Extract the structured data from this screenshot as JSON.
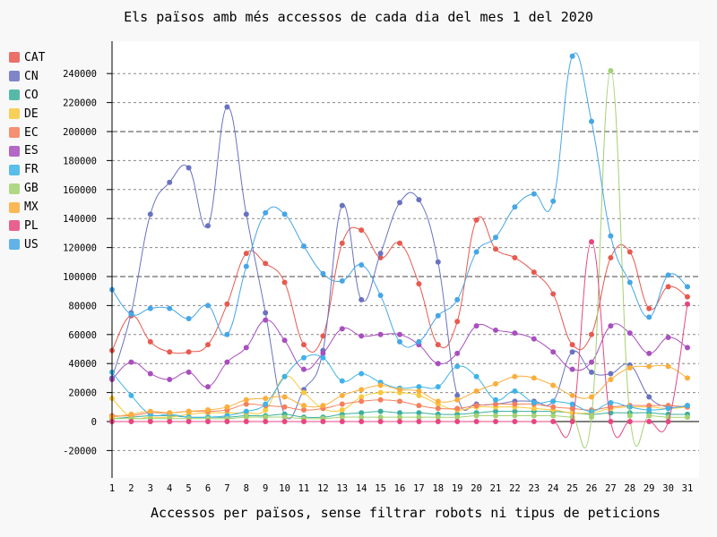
{
  "chart_data": {
    "type": "line",
    "title": "Els països amb més accessos de cada dia del mes 1 del 2020",
    "xlabel": "Accessos per països, sense filtrar robots ni tipus de peticions",
    "ylabel": "",
    "ylim": [
      -40000,
      258000
    ],
    "yticks": [
      -20000,
      0,
      20000,
      40000,
      60000,
      80000,
      100000,
      120000,
      140000,
      160000,
      180000,
      200000,
      220000,
      240000
    ],
    "categories": [
      "1",
      "2",
      "3",
      "4",
      "5",
      "6",
      "7",
      "8",
      "9",
      "10",
      "11",
      "12",
      "13",
      "14",
      "15",
      "16",
      "17",
      "18",
      "19",
      "20",
      "21",
      "22",
      "23",
      "24",
      "25",
      "26",
      "27",
      "28",
      "29",
      "30",
      "31"
    ],
    "grid": "horizontal-dashed",
    "legend_position": "left",
    "series": [
      {
        "name": "CAT",
        "color": "#e8594f",
        "values": [
          49000,
          73000,
          55000,
          48000,
          48000,
          53000,
          81000,
          116000,
          109000,
          96000,
          53000,
          59000,
          123000,
          132000,
          113000,
          123000,
          95000,
          53000,
          69000,
          139000,
          119000,
          113000,
          103000,
          88000,
          53000,
          60000,
          113000,
          117000,
          78000,
          93000,
          86000
        ]
      },
      {
        "name": "CN",
        "color": "#6a72c0",
        "values": [
          30000,
          75000,
          143000,
          165000,
          175000,
          135000,
          217000,
          143000,
          75000,
          5000,
          22000,
          49000,
          149000,
          84000,
          116000,
          151000,
          153000,
          110000,
          18000,
          12000,
          12000,
          14000,
          14000,
          14000,
          48000,
          34000,
          33000,
          39000,
          17000,
          10000,
          11000
        ]
      },
      {
        "name": "CO",
        "color": "#3caf9b",
        "values": [
          2000,
          3000,
          4000,
          4000,
          3000,
          3000,
          3000,
          4000,
          4000,
          5000,
          3000,
          3000,
          5000,
          6000,
          7000,
          6000,
          6000,
          5000,
          5000,
          6000,
          7000,
          7000,
          7000,
          7000,
          6000,
          5000,
          6000,
          6000,
          6000,
          5000,
          5000
        ]
      },
      {
        "name": "DE",
        "color": "#f8c93c",
        "values": [
          16000,
          3000,
          3000,
          3000,
          5000,
          6000,
          6000,
          6000,
          8000,
          31000,
          20000,
          9000,
          8000,
          17000,
          20000,
          20000,
          18000,
          12000,
          8000,
          10000,
          10000,
          10000,
          9000,
          8000,
          6000,
          6000,
          9000,
          10000,
          10000,
          9000,
          10000
        ]
      },
      {
        "name": "EC",
        "color": "#f57f5c",
        "values": [
          4000,
          4000,
          6000,
          6000,
          7000,
          7000,
          8000,
          12000,
          11000,
          10000,
          8000,
          9000,
          12000,
          14000,
          15000,
          14000,
          11000,
          9000,
          9000,
          11000,
          12000,
          12000,
          12000,
          10000,
          9000,
          8000,
          10000,
          11000,
          11000,
          11000,
          10000
        ]
      },
      {
        "name": "ES",
        "color": "#a84fbd",
        "values": [
          29000,
          41000,
          33000,
          29000,
          34000,
          24000,
          41000,
          51000,
          70000,
          56000,
          36000,
          47000,
          64000,
          59000,
          60000,
          60000,
          53000,
          40000,
          47000,
          66000,
          63000,
          61000,
          57000,
          48000,
          36000,
          41000,
          66000,
          61000,
          47000,
          58000,
          51000
        ]
      },
      {
        "name": "FR",
        "color": "#3fb3e8",
        "values": [
          34000,
          18000,
          5000,
          5000,
          3000,
          3000,
          4000,
          7000,
          12000,
          31000,
          44000,
          44000,
          28000,
          33000,
          27000,
          23000,
          24000,
          24000,
          38000,
          31000,
          15000,
          21000,
          13000,
          14000,
          12000,
          7000,
          13000,
          10000,
          8000,
          9000,
          11000
        ]
      },
      {
        "name": "GB",
        "color": "#a3d272",
        "values": [
          2000,
          2000,
          2000,
          2000,
          2000,
          2000,
          2000,
          3000,
          3000,
          3000,
          2000,
          2000,
          3000,
          3000,
          3000,
          3000,
          3000,
          3000,
          3000,
          4000,
          4000,
          4000,
          4000,
          4000,
          3000,
          3000,
          242000,
          4000,
          4000,
          3000,
          3000
        ]
      },
      {
        "name": "MX",
        "color": "#fbae3b",
        "values": [
          3000,
          5000,
          7000,
          6000,
          7000,
          8000,
          10000,
          15000,
          16000,
          17000,
          11000,
          11000,
          18000,
          22000,
          25000,
          22000,
          21000,
          14000,
          15000,
          21000,
          26000,
          31000,
          30000,
          25000,
          18000,
          17000,
          29000,
          37000,
          38000,
          38000,
          30000
        ]
      },
      {
        "name": "PL",
        "color": "#e84680",
        "values": [
          0,
          0,
          0,
          0,
          0,
          0,
          0,
          0,
          0,
          0,
          0,
          0,
          0,
          0,
          0,
          0,
          0,
          0,
          0,
          0,
          0,
          0,
          0,
          0,
          0,
          124000,
          0,
          0,
          0,
          0,
          81000
        ]
      },
      {
        "name": "US",
        "color": "#46a6e6",
        "values": [
          91000,
          74000,
          78000,
          78000,
          71000,
          80000,
          60000,
          107000,
          144000,
          143000,
          121000,
          102000,
          97000,
          108000,
          87000,
          55000,
          55000,
          73000,
          84000,
          117000,
          127000,
          148000,
          157000,
          152000,
          252000,
          207000,
          128000,
          96000,
          72000,
          101000,
          93000
        ]
      }
    ]
  }
}
